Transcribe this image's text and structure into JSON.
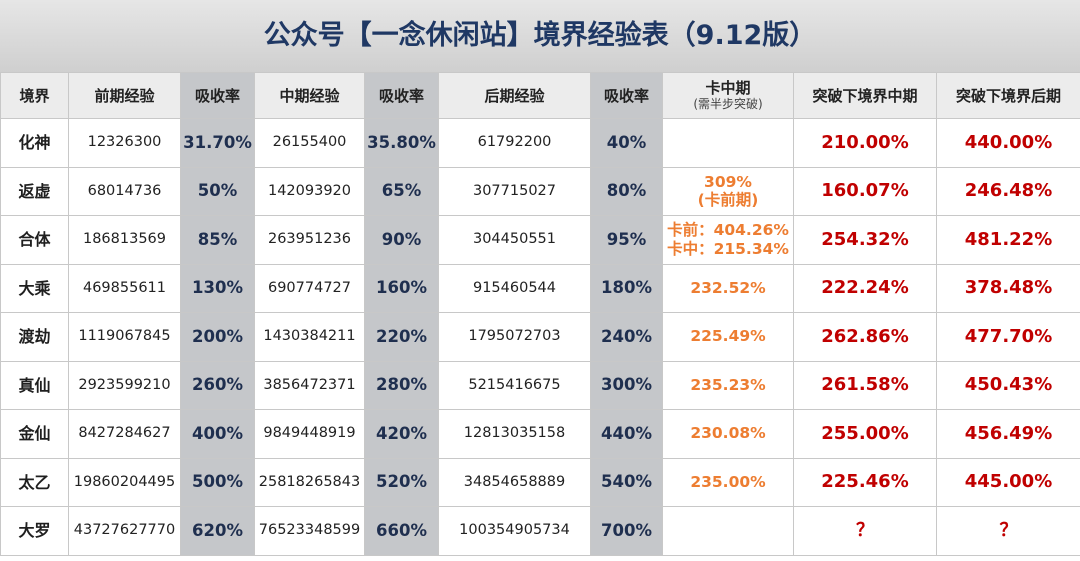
{
  "header": {
    "title": "公众号【一念休闲站】境界经验表（9.12版）"
  },
  "table": {
    "columns": [
      "境界",
      "前期经验",
      "吸收率",
      "中期经验",
      "吸收率",
      "后期经验",
      "吸收率",
      [
        "卡中期",
        "(需半步突破)"
      ],
      "突破下境界中期",
      "突破下境界后期"
    ],
    "rows": [
      [
        "化神",
        "12326300",
        "31.70%",
        "26155400",
        "35.80%",
        "61792200",
        "40%",
        null,
        "210.00%",
        "440.00%"
      ],
      [
        "返虚",
        "68014736",
        "50%",
        "142093920",
        "65%",
        "307715027",
        "80%",
        [
          "309%",
          "(卡前期)"
        ],
        "160.07%",
        "246.48%"
      ],
      [
        "合体",
        "186813569",
        "85%",
        "263951236",
        "90%",
        "304450551",
        "95%",
        [
          "卡前：404.26%",
          "卡中：215.34%"
        ],
        "254.32%",
        "481.22%"
      ],
      [
        "大乘",
        "469855611",
        "130%",
        "690774727",
        "160%",
        "915460544",
        "180%",
        "232.52%",
        "222.24%",
        "378.48%"
      ],
      [
        "渡劫",
        "1119067845",
        "200%",
        "1430384211",
        "220%",
        "1795072703",
        "240%",
        "225.49%",
        "262.86%",
        "477.70%"
      ],
      [
        "真仙",
        "2923599210",
        "260%",
        "3856472371",
        "280%",
        "5215416675",
        "300%",
        "235.23%",
        "261.58%",
        "450.43%"
      ],
      [
        "金仙",
        "8427284627",
        "400%",
        "9849448919",
        "420%",
        "12813035158",
        "440%",
        "230.08%",
        "255.00%",
        "456.49%"
      ],
      [
        "太乙",
        "19860204495",
        "500%",
        "25818265843",
        "520%",
        "34854658889",
        "540%",
        "235.00%",
        "225.46%",
        "445.00%"
      ],
      [
        "大罗",
        "43727627770",
        "620%",
        "76523348599",
        "660%",
        "100354905734",
        "700%",
        null,
        "？",
        "？"
      ]
    ]
  }
}
